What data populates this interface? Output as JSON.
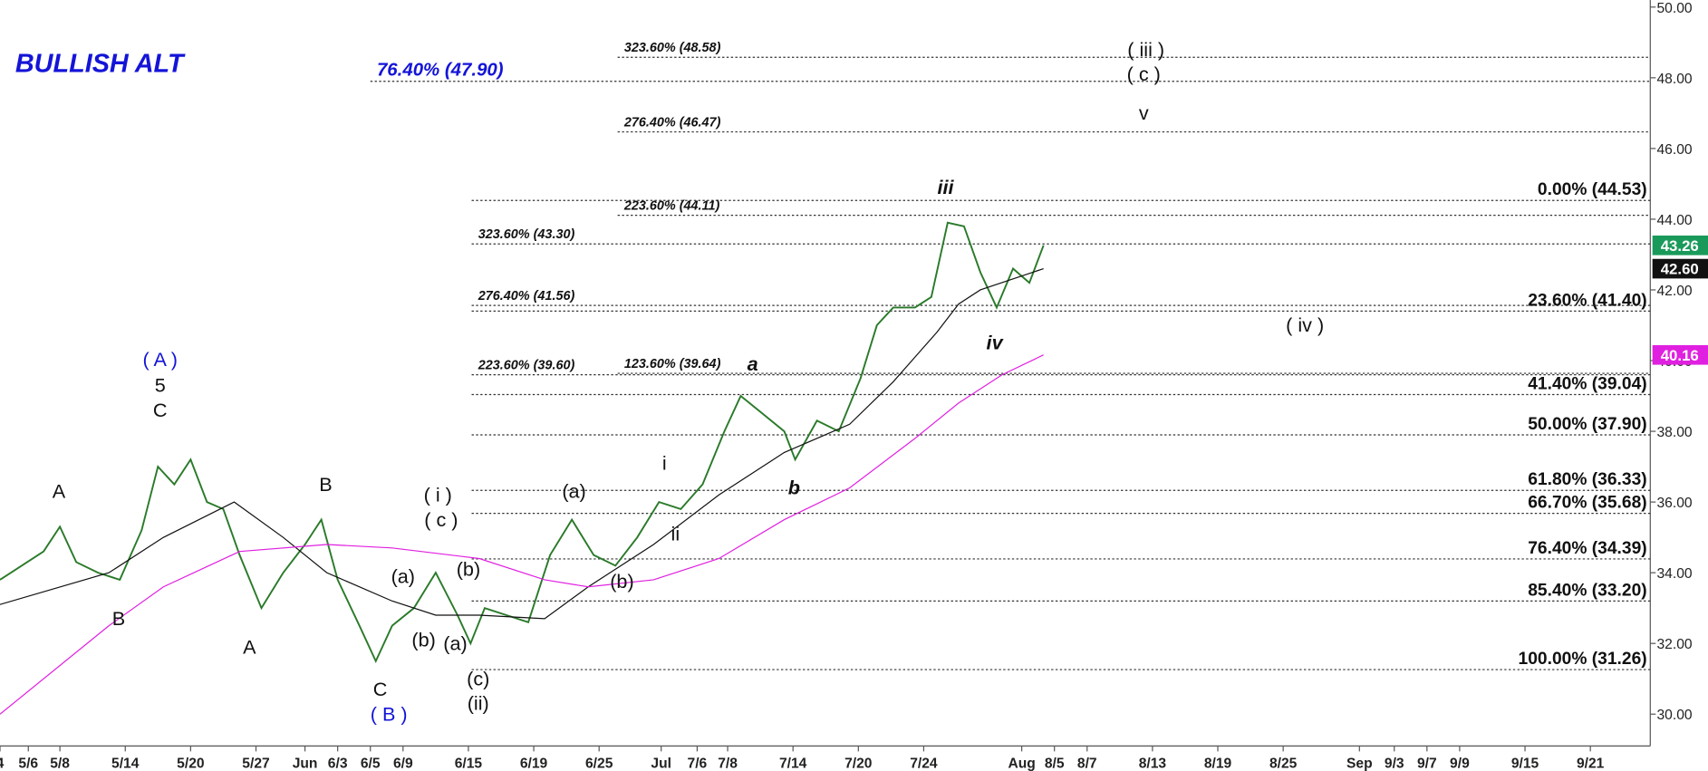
{
  "chart_data": {
    "type": "line",
    "title": "BULLISH ALT",
    "title_color": "#1414d8",
    "xlim": [
      0,
      151.5
    ],
    "ylim": [
      29.1,
      50.2
    ],
    "yticks": [
      {
        "value": 30,
        "label": "30.00"
      },
      {
        "value": 32,
        "label": "32.00"
      },
      {
        "value": 34,
        "label": "34.00"
      },
      {
        "value": 36,
        "label": "36.00"
      },
      {
        "value": 38,
        "label": "38.00"
      },
      {
        "value": 40,
        "label": "40.00"
      },
      {
        "value": 42,
        "label": "42.00"
      },
      {
        "value": 44,
        "label": "44.00"
      },
      {
        "value": 46,
        "label": "46.00"
      },
      {
        "value": 48,
        "label": "48.00"
      },
      {
        "value": 50,
        "label": "50.00"
      }
    ],
    "xticks": [
      {
        "value": 0,
        "label": "4"
      },
      {
        "value": 2.6,
        "label": "5/6"
      },
      {
        "value": 5.5,
        "label": "5/8"
      },
      {
        "value": 11.5,
        "label": "5/14"
      },
      {
        "value": 17.5,
        "label": "5/20"
      },
      {
        "value": 23.5,
        "label": "5/27"
      },
      {
        "value": 28,
        "label": "Jun"
      },
      {
        "value": 31,
        "label": "6/3"
      },
      {
        "value": 34,
        "label": "6/5"
      },
      {
        "value": 37,
        "label": "6/9"
      },
      {
        "value": 43,
        "label": "6/15"
      },
      {
        "value": 49,
        "label": "6/19"
      },
      {
        "value": 55,
        "label": "6/25"
      },
      {
        "value": 60.7,
        "label": "Jul"
      },
      {
        "value": 64,
        "label": "7/6"
      },
      {
        "value": 66.8,
        "label": "7/8"
      },
      {
        "value": 72.8,
        "label": "7/14"
      },
      {
        "value": 78.8,
        "label": "7/20"
      },
      {
        "value": 84.8,
        "label": "7/24"
      },
      {
        "value": 93.8,
        "label": "Aug"
      },
      {
        "value": 96.8,
        "label": "8/5"
      },
      {
        "value": 99.8,
        "label": "8/7"
      },
      {
        "value": 105.8,
        "label": "8/13"
      },
      {
        "value": 111.8,
        "label": "8/19"
      },
      {
        "value": 117.8,
        "label": "8/25"
      },
      {
        "value": 124.8,
        "label": "Sep"
      },
      {
        "value": 128,
        "label": "9/3"
      },
      {
        "value": 131,
        "label": "9/7"
      },
      {
        "value": 134,
        "label": "9/9"
      },
      {
        "value": 140,
        "label": "9/15"
      },
      {
        "value": 146,
        "label": "9/21"
      }
    ],
    "series": [
      {
        "color": "#2a7a2a",
        "x": [
          0,
          2,
          4,
          5.5,
          7,
          9,
          11,
          13,
          14.5,
          16,
          17.5,
          19,
          20.5,
          22,
          24,
          26,
          28,
          29.5,
          31,
          33,
          34.5,
          36,
          38,
          40,
          42,
          43.2,
          44.5,
          46.5,
          48.5,
          50.5,
          52.5,
          54.5,
          56.5,
          58.5,
          60.5,
          62.5,
          64.5,
          66.5,
          68,
          70,
          72,
          73,
          75,
          77,
          79,
          80.5,
          82,
          84,
          85.5,
          87,
          88.5,
          90,
          91.5,
          93,
          94.5,
          95.8
        ],
        "values": [
          33.8,
          34.2,
          34.6,
          35.3,
          34.3,
          34.0,
          33.8,
          35.2,
          37.0,
          36.5,
          37.2,
          36.0,
          35.8,
          34.5,
          33.0,
          34.0,
          34.8,
          35.5,
          33.8,
          32.5,
          31.5,
          32.5,
          33.0,
          34.0,
          32.8,
          32.0,
          33.0,
          32.8,
          32.6,
          34.5,
          35.5,
          34.5,
          34.2,
          35.0,
          36.0,
          35.8,
          36.5,
          38.0,
          39.0,
          38.5,
          38.0,
          37.2,
          38.3,
          38.0,
          39.5,
          41.0,
          41.5,
          41.5,
          41.8,
          43.9,
          43.8,
          42.5,
          41.5,
          42.6,
          42.2,
          43.26
        ]
      },
      {
        "color": "#111111",
        "x": [
          0,
          10,
          15,
          21.5,
          26,
          30,
          36,
          40,
          44,
          50,
          54,
          60,
          66,
          72,
          78,
          82,
          86,
          88,
          90,
          95.8
        ],
        "values": [
          33.1,
          34.0,
          35.0,
          36.0,
          35.0,
          34.0,
          33.2,
          32.8,
          32.8,
          32.7,
          33.6,
          34.8,
          36.2,
          37.4,
          38.2,
          39.4,
          40.8,
          41.6,
          42.0,
          42.6
        ]
      },
      {
        "color": "#e020e0",
        "x": [
          0,
          10,
          15,
          22,
          30,
          36,
          44,
          50,
          54,
          60,
          66,
          72,
          78,
          84,
          88,
          92,
          95.8
        ],
        "values": [
          30.0,
          32.5,
          33.6,
          34.6,
          34.8,
          34.7,
          34.4,
          33.8,
          33.6,
          33.8,
          34.4,
          35.5,
          36.4,
          37.8,
          38.8,
          39.6,
          40.16
        ]
      }
    ],
    "levels": [
      {
        "label": "323.60% (48.58)",
        "value": 48.58,
        "x0": 56.7,
        "side": "left",
        "color": "#111111"
      },
      {
        "label": "76.40% (47.90)",
        "value": 47.9,
        "x0": 34,
        "side": "left",
        "color": "#1414d8"
      },
      {
        "label": "276.40% (46.47)",
        "value": 46.47,
        "x0": 56.7,
        "side": "left",
        "color": "#111111"
      },
      {
        "label": "0.00% (44.53)",
        "value": 44.53,
        "x0": 43.3,
        "side": "right",
        "color": "#111111"
      },
      {
        "label": "223.60% (44.11)",
        "value": 44.11,
        "x0": 56.7,
        "side": "left",
        "color": "#111111"
      },
      {
        "label": "323.60% (43.30)",
        "value": 43.3,
        "x0": 43.3,
        "side": "left",
        "color": "#111111"
      },
      {
        "label": "276.40% (41.56)",
        "value": 41.56,
        "x0": 43.3,
        "side": "left",
        "color": "#111111"
      },
      {
        "label": "23.60% (41.40)",
        "value": 41.4,
        "x0": 43.3,
        "side": "right",
        "color": "#111111"
      },
      {
        "label": "123.60% (39.64)",
        "value": 39.64,
        "x0": 56.7,
        "side": "left",
        "color": "#111111"
      },
      {
        "label": "223.60% (39.60)",
        "value": 39.6,
        "x0": 43.3,
        "side": "left",
        "color": "#111111"
      },
      {
        "label": "41.40% (39.04)",
        "value": 39.04,
        "x0": 43.3,
        "side": "right",
        "color": "#111111"
      },
      {
        "label": "50.00% (37.90)",
        "value": 37.9,
        "x0": 43.3,
        "side": "right",
        "color": "#111111"
      },
      {
        "label": "61.80% (36.33)",
        "value": 36.33,
        "x0": 43.3,
        "side": "right",
        "color": "#111111"
      },
      {
        "label": "66.70% (35.68)",
        "value": 35.68,
        "x0": 43.3,
        "side": "right",
        "color": "#111111"
      },
      {
        "label": "76.40% (34.39)",
        "value": 34.39,
        "x0": 43.3,
        "side": "right",
        "color": "#111111"
      },
      {
        "label": "85.40% (33.20)",
        "value": 33.2,
        "x0": 43.3,
        "side": "right",
        "color": "#111111"
      },
      {
        "label": "100.00% (31.26)",
        "value": 31.26,
        "x0": 43.3,
        "side": "right",
        "color": "#111111"
      }
    ],
    "annotations": [
      {
        "text": "( A )",
        "x": 14.7,
        "y": 40.03,
        "color": "#1414d8",
        "italic": false
      },
      {
        "text": "5",
        "x": 14.7,
        "y": 39.3,
        "color": "#111111",
        "italic": false
      },
      {
        "text": "C",
        "x": 14.7,
        "y": 38.6,
        "color": "#111111",
        "italic": false
      },
      {
        "text": "A",
        "x": 5.4,
        "y": 36.3,
        "color": "#111111",
        "italic": false
      },
      {
        "text": "B",
        "x": 10.9,
        "y": 32.7,
        "color": "#111111",
        "italic": false
      },
      {
        "text": "A",
        "x": 22.9,
        "y": 31.9,
        "color": "#111111",
        "italic": false
      },
      {
        "text": "B",
        "x": 29.9,
        "y": 36.5,
        "color": "#111111",
        "italic": false
      },
      {
        "text": "C",
        "x": 34.9,
        "y": 30.7,
        "color": "#111111",
        "italic": false
      },
      {
        "text": "( B )",
        "x": 35.7,
        "y": 30.0,
        "color": "#1414d8",
        "italic": false
      },
      {
        "text": "( i )",
        "x": 40.2,
        "y": 36.2,
        "color": "#111111",
        "italic": false
      },
      {
        "text": "( c )",
        "x": 40.5,
        "y": 35.5,
        "color": "#111111",
        "italic": false
      },
      {
        "text": "(a)",
        "x": 37.0,
        "y": 33.9,
        "color": "#111111",
        "italic": false
      },
      {
        "text": "(b)",
        "x": 38.9,
        "y": 32.1,
        "color": "#111111",
        "italic": false
      },
      {
        "text": "(a)",
        "x": 41.8,
        "y": 32.0,
        "color": "#111111",
        "italic": false
      },
      {
        "text": "(b)",
        "x": 43.0,
        "y": 34.1,
        "color": "#111111",
        "italic": false
      },
      {
        "text": "(c)",
        "x": 43.9,
        "y": 31.0,
        "color": "#111111",
        "italic": false
      },
      {
        "text": "(ii)",
        "x": 43.9,
        "y": 30.3,
        "color": "#111111",
        "italic": false
      },
      {
        "text": "(a)",
        "x": 52.7,
        "y": 36.3,
        "color": "#111111",
        "italic": false
      },
      {
        "text": "(b)",
        "x": 57.1,
        "y": 33.75,
        "color": "#111111",
        "italic": false
      },
      {
        "text": "i",
        "x": 61.0,
        "y": 37.1,
        "color": "#111111",
        "italic": false
      },
      {
        "text": "ii",
        "x": 62.0,
        "y": 35.1,
        "color": "#111111",
        "italic": false
      },
      {
        "text": "a",
        "x": 69.1,
        "y": 39.9,
        "color": "#111111",
        "italic": true
      },
      {
        "text": "b",
        "x": 72.9,
        "y": 36.4,
        "color": "#111111",
        "italic": true
      },
      {
        "text": "iii",
        "x": 86.8,
        "y": 44.9,
        "color": "#111111",
        "italic": true
      },
      {
        "text": "iv",
        "x": 91.3,
        "y": 40.5,
        "color": "#111111",
        "italic": true
      },
      {
        "text": "( iii )",
        "x": 105.2,
        "y": 48.8,
        "color": "#111111",
        "italic": false
      },
      {
        "text": "( c )",
        "x": 105.0,
        "y": 48.1,
        "color": "#111111",
        "italic": false
      },
      {
        "text": "v",
        "x": 105.0,
        "y": 47.0,
        "color": "#111111",
        "italic": false
      },
      {
        "text": "( iv )",
        "x": 119.8,
        "y": 41.0,
        "color": "#111111",
        "italic": false
      }
    ],
    "price_tags": [
      {
        "value": 43.26,
        "label": "43.26",
        "color": "#1a9a5a"
      },
      {
        "value": 42.6,
        "label": "42.60",
        "color": "#111111"
      },
      {
        "value": 40.16,
        "label": "40.16",
        "color": "#e020e0"
      }
    ]
  }
}
